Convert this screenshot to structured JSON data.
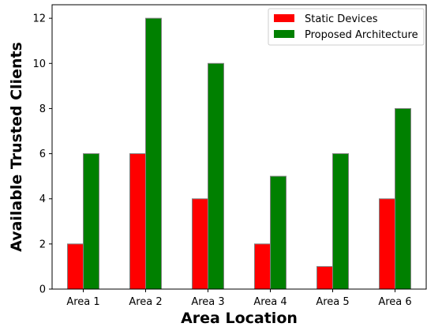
{
  "chart_data": {
    "type": "bar",
    "title": "",
    "xlabel": "Area Location",
    "ylabel": "Available Trusted Clients",
    "categories": [
      "Area 1",
      "Area 2",
      "Area 3",
      "Area 4",
      "Area 5",
      "Area 6"
    ],
    "series": [
      {
        "name": "Static Devices",
        "values": [
          2,
          6,
          4,
          2,
          1,
          4
        ],
        "color": "#ff0000"
      },
      {
        "name": "Proposed Architecture",
        "values": [
          6,
          12,
          10,
          5,
          6,
          8
        ],
        "color": "#008000"
      }
    ],
    "ylim": [
      0,
      12.6
    ],
    "yticks": [
      0,
      2,
      4,
      6,
      8,
      10,
      12
    ],
    "grid": false,
    "legend_position": "top-right",
    "bar_edge_color": "#808080"
  }
}
